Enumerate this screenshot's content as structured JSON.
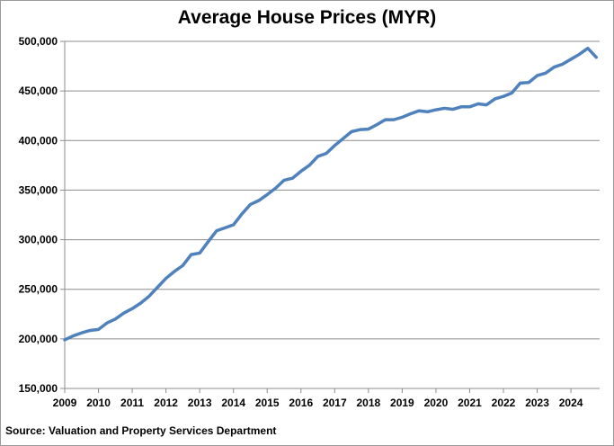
{
  "chart_data": {
    "type": "line",
    "title": "Average House Prices (MYR)",
    "source": "Source: Valuation and Property Services Department",
    "xlabel": "",
    "ylabel": "",
    "xlim": [
      2009.0,
      2024.85
    ],
    "ylim": [
      150000,
      500000
    ],
    "y_ticks": [
      150000,
      200000,
      250000,
      300000,
      350000,
      400000,
      450000,
      500000
    ],
    "y_tick_labels": [
      "150,000",
      "200,000",
      "250,000",
      "300,000",
      "350,000",
      "400,000",
      "450,000",
      "500,000"
    ],
    "x_ticks": [
      2009,
      2010,
      2011,
      2012,
      2013,
      2014,
      2015,
      2016,
      2017,
      2018,
      2019,
      2020,
      2021,
      2022,
      2023,
      2024
    ],
    "x_tick_labels": [
      "2009",
      "2010",
      "2011",
      "2012",
      "2013",
      "2014",
      "2015",
      "2016",
      "2017",
      "2018",
      "2019",
      "2020",
      "2021",
      "2022",
      "2023",
      "2024"
    ],
    "grid": true,
    "line_color": "#4f81bd",
    "series": [
      {
        "x": [
          2009.0,
          2009.25,
          2009.5,
          2009.75,
          2010.0,
          2010.25,
          2010.5,
          2010.75,
          2011.0,
          2011.25,
          2011.5,
          2011.75,
          2012.0,
          2012.25,
          2012.5,
          2012.75,
          2013.0,
          2013.25,
          2013.5,
          2013.75,
          2014.0,
          2014.25,
          2014.5,
          2014.75,
          2015.0,
          2015.25,
          2015.5,
          2015.75,
          2016.0,
          2016.25,
          2016.5,
          2016.75,
          2017.0,
          2017.25,
          2017.5,
          2017.75,
          2018.0,
          2018.25,
          2018.5,
          2018.75,
          2019.0,
          2019.25,
          2019.5,
          2019.75,
          2020.0,
          2020.25,
          2020.5,
          2020.75,
          2021.0,
          2021.25,
          2021.5,
          2021.75,
          2022.0,
          2022.25,
          2022.5,
          2022.75,
          2023.0,
          2023.25,
          2023.5,
          2023.75,
          2024.0,
          2024.25,
          2024.5,
          2024.75
        ],
        "values": [
          199000,
          203000,
          206000,
          208500,
          209500,
          216000,
          220000,
          226000,
          230500,
          236000,
          243000,
          252000,
          261000,
          268000,
          274000,
          285000,
          286500,
          298000,
          309000,
          312000,
          315000,
          326000,
          335500,
          339500,
          345500,
          352000,
          360000,
          362000,
          369000,
          375000,
          384000,
          387000,
          395000,
          402000,
          409000,
          411000,
          411500,
          416000,
          421000,
          421000,
          423500,
          427000,
          430000,
          429000,
          431000,
          432500,
          431500,
          434000,
          434000,
          437000,
          436000,
          442000,
          444500,
          448000,
          458000,
          458500,
          465500,
          468000,
          474000,
          477000,
          482000,
          487000,
          493000,
          484000
        ]
      }
    ]
  }
}
